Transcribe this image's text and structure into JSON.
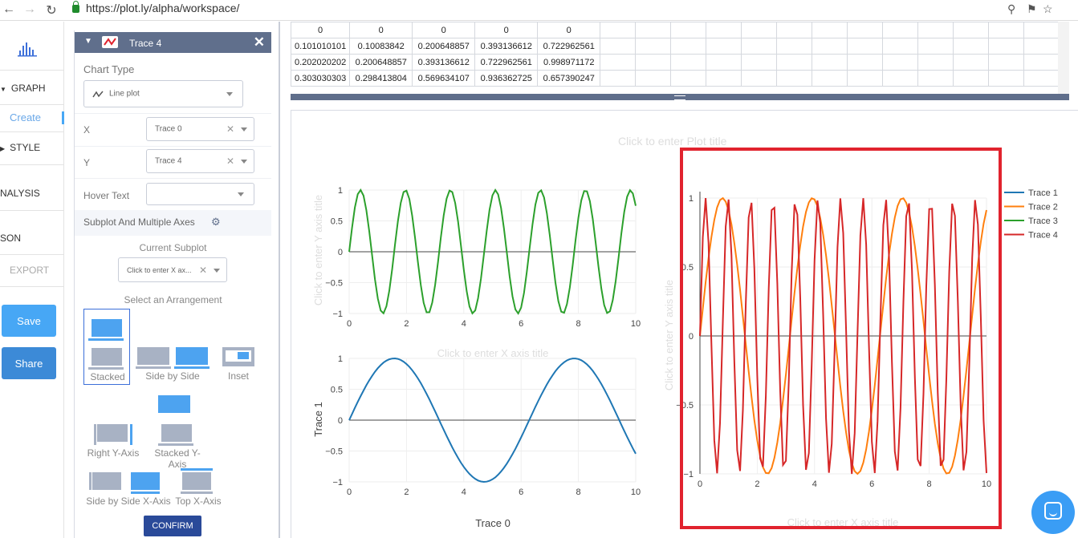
{
  "browser": {
    "url": "https://plot.ly/alpha/workspace/"
  },
  "leftnav": {
    "items": [
      {
        "label": "GRAPH",
        "arrow": "▼"
      },
      {
        "label": "Create"
      },
      {
        "label": "STYLE",
        "arrow": "▶"
      },
      {
        "label": "NALYSIS"
      },
      {
        "label": "SON"
      },
      {
        "label": "EXPORT"
      }
    ],
    "save": "Save",
    "share": "Share"
  },
  "panel": {
    "trace_title": "Trace 4",
    "chart_type_label": "Chart Type",
    "chart_type_value": "Line plot",
    "x_label": "X",
    "x_value": "Trace 0",
    "y_label": "Y",
    "y_value": "Trace 4",
    "hover_label": "Hover Text",
    "subplot_label": "Subplot And Multiple Axes",
    "current_subplot_label": "Current Subplot",
    "current_subplot_value": "Click to enter X ax...",
    "arrangement_label": "Select an Arrangement",
    "arrangements": [
      "Stacked",
      "Side by Side",
      "Inset",
      "Right Y-Axis",
      "Stacked Y-Axis",
      "Side by Side X-Axis",
      "Top X-Axis"
    ],
    "confirm": "CONFIRM"
  },
  "grid": {
    "rows": [
      [
        "0",
        "0",
        "0",
        "0",
        "0"
      ],
      [
        "0.101010101",
        "0.10083842",
        "0.200648857",
        "0.393136612",
        "0.722962561"
      ],
      [
        "0.202020202",
        "0.200648857",
        "0.393136612",
        "0.722962561",
        "0.998971172"
      ],
      [
        "0.303030303",
        "0.298413804",
        "0.569634107",
        "0.936362725",
        "0.657390247"
      ]
    ]
  },
  "plot": {
    "title_placeholder": "Click to enter Plot title",
    "x_title_placeholder": "Click to enter X axis title",
    "y_title_placeholder": "Click to enter Y axis title",
    "y_title_bottom": "Trace 1",
    "x_title_bottom": "Trace 0"
  },
  "colors": {
    "trace1": "#1f77b4",
    "trace2": "#ff7f0e",
    "trace3": "#2ca02c",
    "trace4": "#d62728",
    "highlight": "#e1232e",
    "accent": "#47a7f5"
  },
  "chart_data": [
    {
      "type": "line",
      "x_range": [
        0,
        10
      ],
      "ylim": [
        -1,
        1
      ],
      "x_ticks": [
        0,
        2,
        4,
        6,
        8,
        10
      ],
      "y_ticks": [
        1,
        0.5,
        0,
        -0.5,
        -1
      ],
      "y_tick_labels": [
        "1",
        "0.5",
        "0",
        "−0.5",
        "−1"
      ],
      "series": [
        {
          "name": "Trace 3",
          "function": "sin(4x)",
          "color": "#2ca02c"
        }
      ]
    },
    {
      "type": "line",
      "x_range": [
        0,
        10
      ],
      "ylim": [
        -1,
        1
      ],
      "x_ticks": [
        0,
        2,
        4,
        6,
        8,
        10
      ],
      "y_ticks": [
        1,
        0.5,
        0,
        -0.5,
        -1
      ],
      "y_tick_labels": [
        "1",
        "0.5",
        "0",
        "−0.5",
        "−1"
      ],
      "xlabel": "Trace 0",
      "ylabel": "Trace 1",
      "series": [
        {
          "name": "Trace 1",
          "function": "sin(x)",
          "color": "#1f77b4"
        }
      ]
    },
    {
      "type": "line",
      "x_range": [
        0,
        10
      ],
      "ylim": [
        -1,
        1
      ],
      "x_ticks": [
        0,
        2,
        4,
        6,
        8,
        10
      ],
      "y_ticks": [
        1,
        0.5,
        0,
        -0.5,
        -1
      ],
      "y_tick_labels": [
        "1",
        "0.5",
        "0",
        "−0.5",
        "−1"
      ],
      "legend": [
        "Trace 1",
        "Trace 2",
        "Trace 3",
        "Trace 4"
      ],
      "series": [
        {
          "name": "Trace 2",
          "function": "sin(2x)",
          "color": "#ff7f0e"
        },
        {
          "name": "Trace 4",
          "function": "sin(8x)",
          "color": "#d62728"
        }
      ]
    }
  ]
}
